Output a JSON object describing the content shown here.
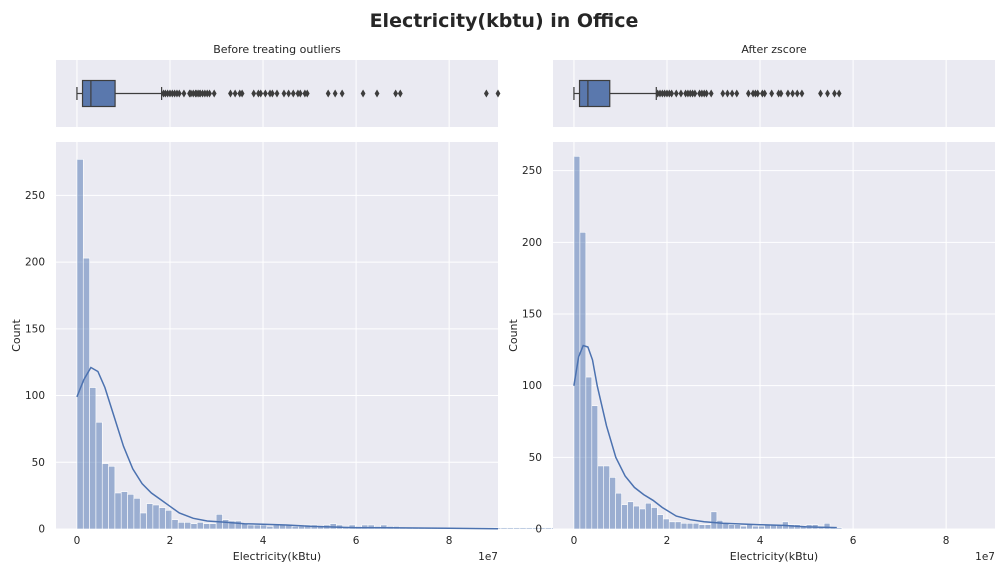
{
  "figure": {
    "title": "Electricity(kbtu) in Office"
  },
  "chart_data": [
    {
      "type": "box",
      "title": "Before treating outliers",
      "xlim": [
        -0.45,
        9.05
      ],
      "xticks": [
        0,
        2,
        4,
        6,
        8
      ],
      "grid": true,
      "box": {
        "whislo": 0.0,
        "q1": 0.12,
        "median": 0.3,
        "q3": 0.82,
        "whishi": 1.82
      },
      "outliers": [
        1.86,
        1.9,
        1.95,
        2.0,
        2.05,
        2.1,
        2.15,
        2.2,
        2.3,
        2.42,
        2.45,
        2.5,
        2.55,
        2.58,
        2.62,
        2.65,
        2.7,
        2.75,
        2.8,
        2.85,
        2.95,
        3.3,
        3.4,
        3.5,
        3.55,
        3.8,
        3.9,
        3.95,
        4.05,
        4.15,
        4.2,
        4.3,
        4.45,
        4.55,
        4.65,
        4.75,
        4.8,
        4.9,
        4.95,
        5.4,
        5.55,
        5.7,
        6.15,
        6.45,
        6.85,
        6.95,
        8.8,
        9.05
      ]
    },
    {
      "type": "box",
      "title": "After zscore",
      "xlim": [
        -0.45,
        9.05
      ],
      "xticks": [
        0,
        2,
        4,
        6,
        8
      ],
      "grid": true,
      "box": {
        "whislo": 0.0,
        "q1": 0.12,
        "median": 0.3,
        "q3": 0.77,
        "whishi": 1.77
      },
      "outliers": [
        1.8,
        1.85,
        1.9,
        1.95,
        2.0,
        2.05,
        2.1,
        2.2,
        2.3,
        2.4,
        2.45,
        2.5,
        2.55,
        2.6,
        2.7,
        2.75,
        2.8,
        2.85,
        2.95,
        3.2,
        3.3,
        3.4,
        3.5,
        3.75,
        3.85,
        3.9,
        3.95,
        4.05,
        4.1,
        4.25,
        4.4,
        4.45,
        4.6,
        4.7,
        4.8,
        4.9,
        5.3,
        5.45,
        5.6,
        5.7
      ]
    },
    {
      "type": "bar",
      "subtype": "histogram+kde",
      "xlabel": "Electricity(kBtu)",
      "ylabel": "Count",
      "x_offset_label": "1e7",
      "xlim": [
        -0.45,
        9.05
      ],
      "ylim": [
        0,
        290
      ],
      "xticks": [
        0,
        2,
        4,
        6,
        8
      ],
      "yticks": [
        0,
        50,
        100,
        150,
        200,
        250
      ],
      "grid": true,
      "bin_start": 0,
      "bin_width": 0.136,
      "counts": [
        277,
        203,
        106,
        80,
        49,
        47,
        27,
        28,
        26,
        23,
        12,
        19,
        18,
        16,
        14,
        7,
        5,
        5,
        4,
        5,
        4,
        4,
        11,
        7,
        6,
        6,
        4,
        3,
        3,
        3,
        2,
        3,
        3,
        3,
        2,
        2,
        3,
        3,
        2,
        3,
        4,
        3,
        2,
        3,
        2,
        3,
        3,
        2,
        3,
        2,
        2,
        1,
        1,
        1,
        1,
        1,
        1,
        1,
        1,
        1,
        1,
        1,
        1,
        1,
        1,
        1,
        1,
        1,
        1,
        1,
        1,
        1,
        1,
        1,
        1,
        1
      ],
      "kde": {
        "x": [
          0,
          0.15,
          0.3,
          0.45,
          0.6,
          0.8,
          1.0,
          1.2,
          1.4,
          1.6,
          1.8,
          2.0,
          2.2,
          2.5,
          2.8,
          3.2,
          3.6,
          4.0,
          4.5,
          5.0,
          5.5,
          6.0,
          7.0,
          8.0,
          9.05
        ],
        "y": [
          99,
          112,
          121,
          118,
          106,
          84,
          62,
          45,
          34,
          27,
          22,
          17,
          12,
          8,
          6,
          5,
          4,
          3.5,
          3,
          2,
          1.5,
          1,
          0.8,
          0.5,
          0.2
        ]
      }
    },
    {
      "type": "bar",
      "subtype": "histogram+kde",
      "xlabel": "Electricity(kBtu)",
      "ylabel": "Count",
      "x_offset_label": "1e7",
      "xlim": [
        -0.45,
        9.05
      ],
      "ylim": [
        0,
        270
      ],
      "xticks": [
        0,
        2,
        4,
        6,
        8
      ],
      "yticks": [
        0,
        50,
        100,
        150,
        200,
        250
      ],
      "grid": true,
      "bin_start": 0,
      "bin_width": 0.128,
      "counts": [
        260,
        207,
        106,
        86,
        44,
        44,
        36,
        25,
        17,
        19,
        16,
        14,
        18,
        15,
        10,
        7,
        5,
        5,
        4,
        4,
        4,
        3,
        3,
        12,
        6,
        4,
        3,
        3,
        2,
        3,
        2,
        2,
        3,
        3,
        3,
        5,
        3,
        3,
        2,
        3,
        3,
        2,
        4,
        1,
        1
      ],
      "kde": {
        "x": [
          0,
          0.1,
          0.2,
          0.3,
          0.4,
          0.5,
          0.7,
          0.9,
          1.1,
          1.3,
          1.5,
          1.7,
          1.9,
          2.2,
          2.5,
          2.8,
          3.2,
          3.6,
          4.0,
          4.5,
          5.0,
          5.65
        ],
        "y": [
          100,
          120,
          128,
          127,
          118,
          100,
          72,
          50,
          37,
          29,
          24,
          20,
          15,
          9,
          6.5,
          5,
          4,
          3.5,
          3,
          2.5,
          1.5,
          1
        ]
      }
    }
  ]
}
